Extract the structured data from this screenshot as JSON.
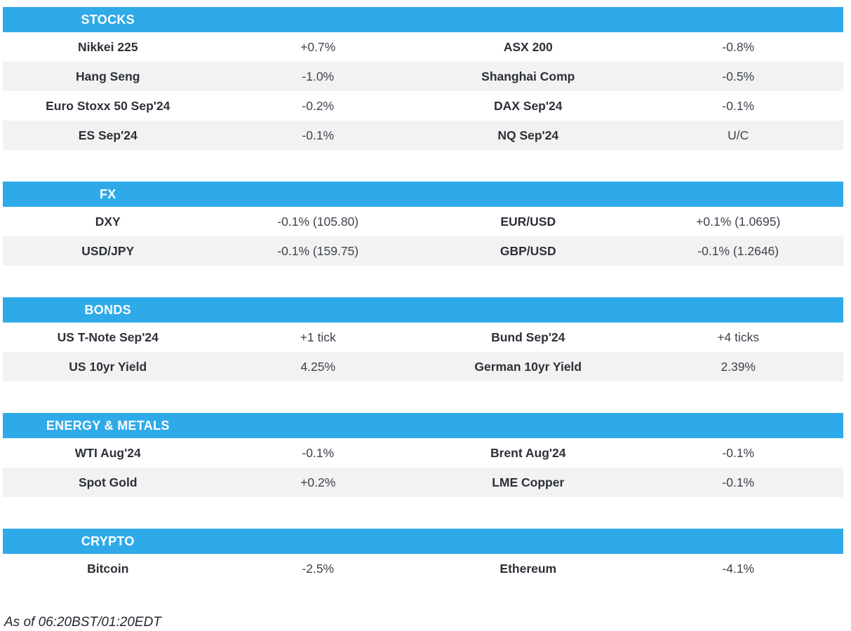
{
  "colors": {
    "accent": "#2faae9",
    "row_alt": "#f2f2f2",
    "header_text": "#ffffff",
    "label_text": "#2c3038",
    "value_text": "#3d434c",
    "footer_text": "#23272e"
  },
  "sections": [
    {
      "title": "STOCKS",
      "rows": [
        {
          "l1": "Nikkei 225",
          "v1": "+0.7%",
          "l2": "ASX 200",
          "v2": "-0.8%"
        },
        {
          "l1": "Hang Seng",
          "v1": "-1.0%",
          "l2": "Shanghai Comp",
          "v2": "-0.5%"
        },
        {
          "l1": "Euro Stoxx 50 Sep'24",
          "v1": "-0.2%",
          "l2": "DAX Sep'24",
          "v2": "-0.1%"
        },
        {
          "l1": "ES Sep'24",
          "v1": "-0.1%",
          "l2": "NQ Sep'24",
          "v2": "U/C"
        }
      ]
    },
    {
      "title": "FX",
      "rows": [
        {
          "l1": "DXY",
          "v1": "-0.1% (105.80)",
          "l2": "EUR/USD",
          "v2": "+0.1% (1.0695)"
        },
        {
          "l1": "USD/JPY",
          "v1": "-0.1% (159.75)",
          "l2": "GBP/USD",
          "v2": "-0.1% (1.2646)"
        }
      ]
    },
    {
      "title": "BONDS",
      "rows": [
        {
          "l1": "US T-Note Sep'24",
          "v1": "+1 tick",
          "l2": "Bund Sep'24",
          "v2": "+4 ticks"
        },
        {
          "l1": "US 10yr Yield",
          "v1": "4.25%",
          "l2": "German 10yr Yield",
          "v2": "2.39%"
        }
      ]
    },
    {
      "title": "ENERGY & METALS",
      "rows": [
        {
          "l1": "WTI Aug'24",
          "v1": "-0.1%",
          "l2": "Brent Aug'24",
          "v2": "-0.1%"
        },
        {
          "l1": "Spot Gold",
          "v1": "+0.2%",
          "l2": "LME Copper",
          "v2": "-0.1%"
        }
      ]
    },
    {
      "title": "CRYPTO",
      "rows": [
        {
          "l1": "Bitcoin",
          "v1": "-2.5%",
          "l2": "Ethereum",
          "v2": "-4.1%"
        }
      ]
    }
  ],
  "footer": {
    "as_of": "As of 06:20BST/01:20EDT"
  }
}
